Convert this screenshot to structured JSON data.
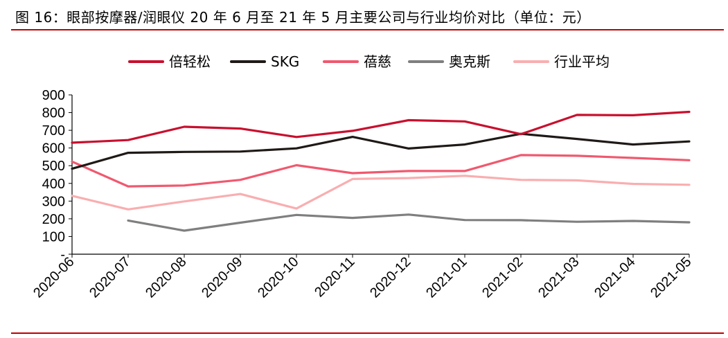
{
  "figure": {
    "title": "图 16：眼部按摩器/润眼仪 20 年 6 月至 21 年 5 月主要公司与行业均价对比（单位：元）"
  },
  "chart_data": {
    "type": "line",
    "title": "图 16：眼部按摩器/润眼仪 20 年 6 月至 21 年 5 月主要公司与行业均价对比（单位：元）",
    "unit": "元",
    "xlabel": "",
    "ylabel": "",
    "x": [
      "2020-06",
      "2020-07",
      "2020-08",
      "2020-09",
      "2020-10",
      "2020-11",
      "2020-12",
      "2021-01",
      "2021-02",
      "2021-03",
      "2021-04",
      "2021-05"
    ],
    "ylim": [
      0,
      900
    ],
    "yticks": [
      0,
      100,
      200,
      300,
      400,
      500,
      600,
      700,
      800,
      900
    ],
    "ytick_labels": [
      "-",
      "100",
      "200",
      "300",
      "400",
      "500",
      "600",
      "700",
      "800",
      "900"
    ],
    "grid": false,
    "legend_position": "top",
    "series": [
      {
        "name": "倍轻松",
        "color": "#c8102e",
        "values": [
          630,
          645,
          720,
          710,
          662,
          697,
          757,
          750,
          678,
          787,
          785,
          804
        ]
      },
      {
        "name": "SKG",
        "color": "#1f1a17",
        "values": [
          483,
          573,
          578,
          580,
          598,
          663,
          597,
          620,
          680,
          651,
          620,
          637
        ]
      },
      {
        "name": "蓓慈",
        "color": "#f0596e",
        "values": [
          523,
          383,
          388,
          420,
          503,
          458,
          470,
          470,
          560,
          556,
          544,
          531
        ]
      },
      {
        "name": "奥克斯",
        "color": "#7f7f7f",
        "values": [
          null,
          190,
          133,
          178,
          222,
          205,
          224,
          193,
          192,
          183,
          188,
          180
        ]
      },
      {
        "name": "行业平均",
        "color": "#f9aeb0",
        "values": [
          330,
          253,
          298,
          340,
          258,
          425,
          430,
          443,
          420,
          417,
          397,
          392
        ]
      }
    ]
  }
}
